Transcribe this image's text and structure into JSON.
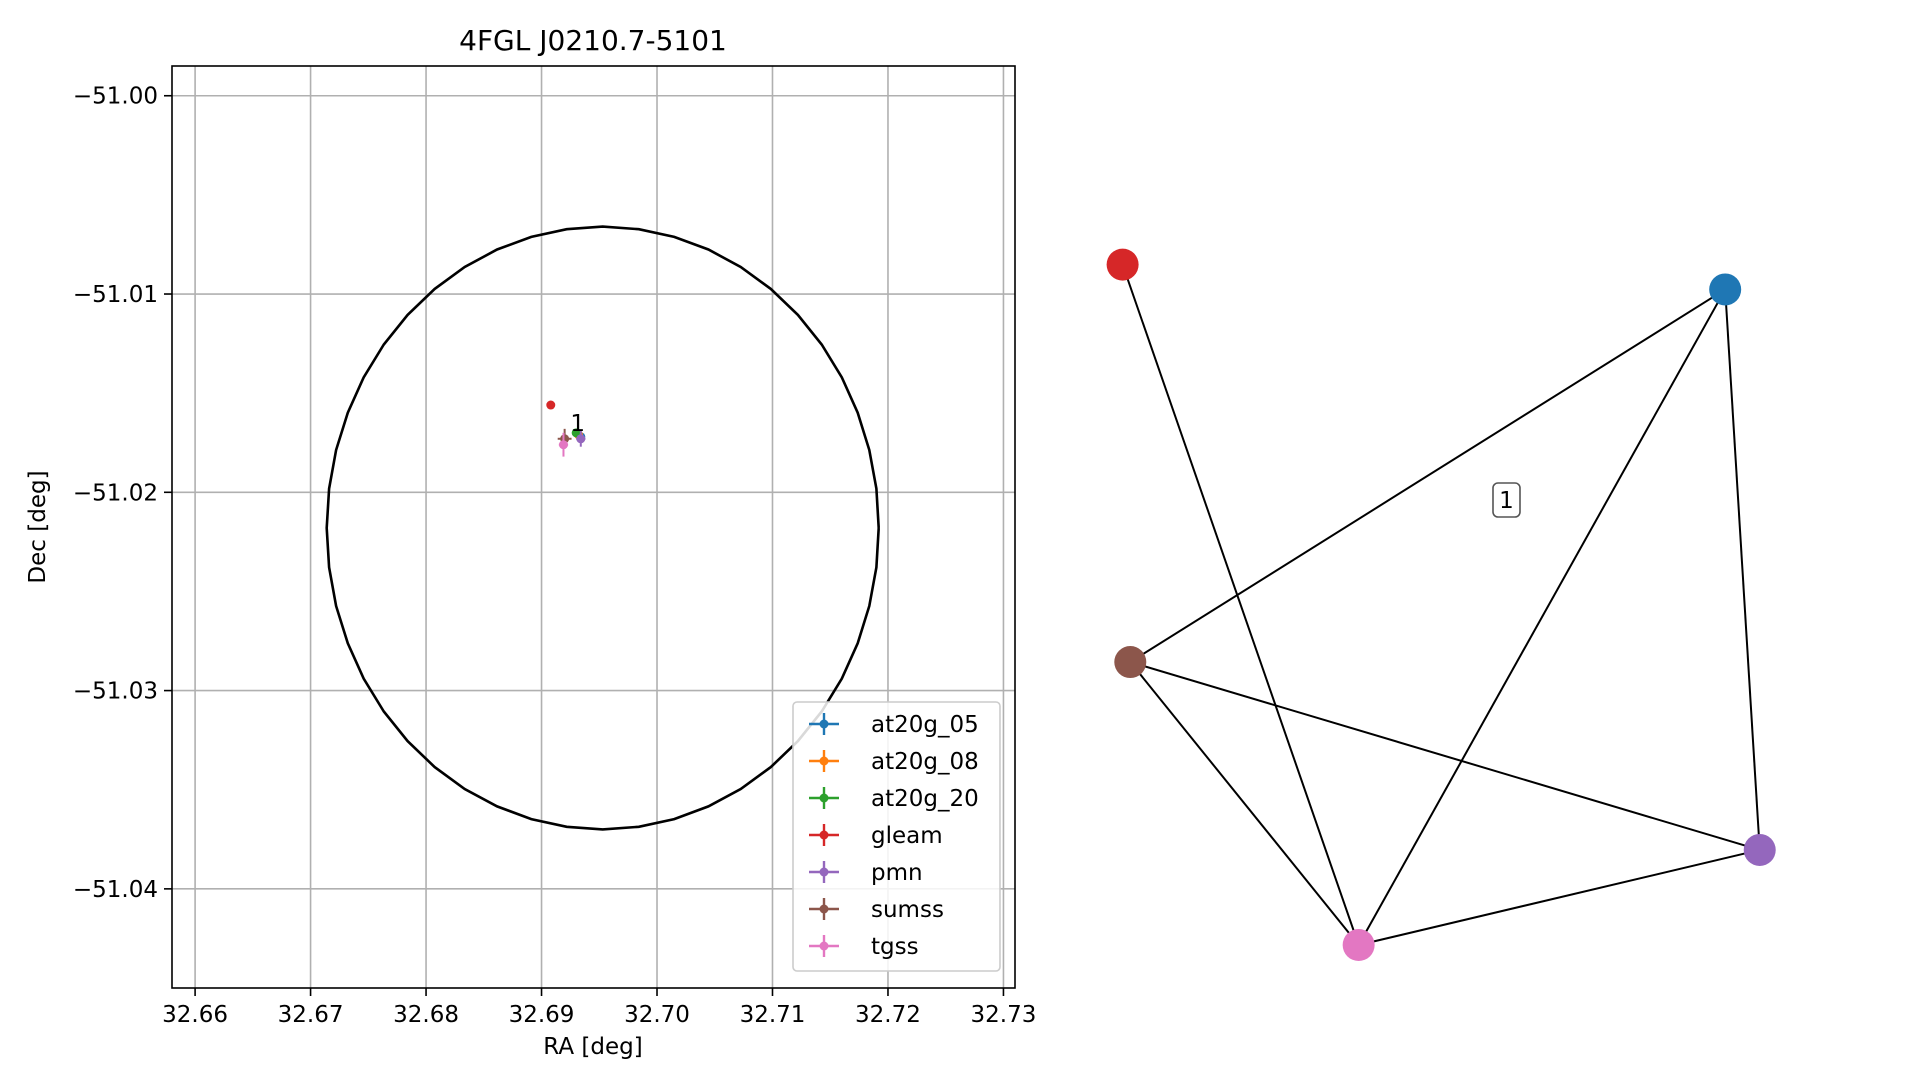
{
  "chart_data": [
    {
      "type": "scatter",
      "title": "4FGL J0210.7-5101",
      "xlabel": "RA [deg]",
      "ylabel": "Dec [deg]",
      "xlim": [
        32.658,
        32.731
      ],
      "ylim": [
        -51.045,
        -50.9985
      ],
      "xticks": [
        32.66,
        32.67,
        32.68,
        32.69,
        32.7,
        32.71,
        32.72,
        32.73
      ],
      "xtick_labels": [
        "32.66",
        "32.67",
        "32.68",
        "32.69",
        "32.70",
        "32.71",
        "32.72",
        "32.73"
      ],
      "yticks": [
        -51.0,
        -51.01,
        -51.02,
        -51.03,
        -51.04
      ],
      "ytick_labels": [
        "−51.00",
        "−51.01",
        "−51.02",
        "−51.03",
        "−51.04"
      ],
      "grid": true,
      "legend_position": "lower-right",
      "ellipse": {
        "center": [
          32.6953,
          -51.0218
        ],
        "semi_ra": 0.0239,
        "semi_dec": 0.0152,
        "color": "#000000"
      },
      "annotations": [
        {
          "text": "1",
          "x": 32.6925,
          "y": -51.0165
        }
      ],
      "series": [
        {
          "name": "at20g_05",
          "color": "#1f77b4",
          "points": [
            {
              "x": 32.6934,
              "y": -51.0172,
              "xerr": 0.0002,
              "yerr": 0.0002
            }
          ]
        },
        {
          "name": "at20g_08",
          "color": "#ff7f0e",
          "points": [
            {
              "x": 32.6932,
              "y": -51.0171,
              "xerr": 0.0002,
              "yerr": 0.0002
            }
          ]
        },
        {
          "name": "at20g_20",
          "color": "#2ca02c",
          "points": [
            {
              "x": 32.693,
              "y": -51.017,
              "xerr": 0.0003,
              "yerr": 0.0002
            }
          ]
        },
        {
          "name": "gleam",
          "color": "#d62728",
          "points": [
            {
              "x": 32.6908,
              "y": -51.0156,
              "xerr": 0.0003,
              "yerr": 0.0002
            }
          ]
        },
        {
          "name": "pmn",
          "color": "#9467bd",
          "points": [
            {
              "x": 32.6934,
              "y": -51.0173,
              "xerr": 0.0004,
              "yerr": 0.0004
            }
          ]
        },
        {
          "name": "sumss",
          "color": "#8c564b",
          "points": [
            {
              "x": 32.692,
              "y": -51.0173,
              "xerr": 0.0006,
              "yerr": 0.0005
            }
          ]
        },
        {
          "name": "tgss",
          "color": "#e377c2",
          "points": [
            {
              "x": 32.6919,
              "y": -51.0176,
              "xerr": 0.0004,
              "yerr": 0.0006
            }
          ]
        }
      ]
    },
    {
      "type": "network",
      "label": "1",
      "nodes": [
        {
          "id": "at20g",
          "color": "#1f77b4",
          "pos": [
            0.899,
            0.268
          ]
        },
        {
          "id": "gleam",
          "color": "#d62728",
          "pos": [
            0.585,
            0.245
          ]
        },
        {
          "id": "sumss",
          "color": "#8c564b",
          "pos": [
            0.589,
            0.613
          ]
        },
        {
          "id": "pmn",
          "color": "#9467bd",
          "pos": [
            0.917,
            0.787
          ]
        },
        {
          "id": "tgss",
          "color": "#e377c2",
          "pos": [
            0.708,
            0.875
          ]
        }
      ],
      "edges": [
        [
          "gleam",
          "tgss"
        ],
        [
          "sumss",
          "at20g"
        ],
        [
          "sumss",
          "pmn"
        ],
        [
          "sumss",
          "tgss"
        ],
        [
          "at20g",
          "tgss"
        ],
        [
          "at20g",
          "pmn"
        ],
        [
          "pmn",
          "tgss"
        ]
      ]
    }
  ]
}
